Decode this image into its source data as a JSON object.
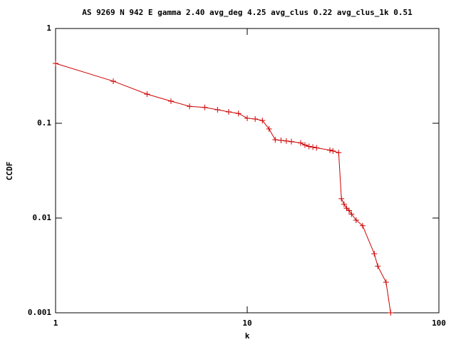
{
  "chart_data": {
    "type": "line",
    "title": "AS 9269 N 942 E gamma 2.40 avg_deg 4.25 avg_clus 0.22 avg_clus_1k 0.51",
    "xlabel": "k",
    "ylabel": "CCDF",
    "log_x": true,
    "log_y": true,
    "xlim": [
      1,
      100
    ],
    "xticks": [
      1,
      10,
      100
    ],
    "ylim": [
      0.001,
      1
    ],
    "yticks": [
      0.001,
      0.01,
      0.1,
      1
    ],
    "series": [
      {
        "color": "#cc0000",
        "x": [
          1,
          2,
          3,
          4,
          5,
          6,
          7,
          8,
          9,
          10,
          11,
          12,
          13,
          14,
          15,
          16,
          17,
          19,
          20,
          21,
          22,
          23,
          27,
          28,
          30,
          31,
          32,
          33,
          34,
          35,
          37,
          40,
          46,
          48,
          53,
          56
        ],
        "values": [
          0.428,
          0.278,
          0.203,
          0.171,
          0.151,
          0.147,
          0.139,
          0.132,
          0.127,
          0.113,
          0.111,
          0.107,
          0.087,
          0.067,
          0.066,
          0.065,
          0.064,
          0.062,
          0.059,
          0.057,
          0.056,
          0.055,
          0.052,
          0.051,
          0.049,
          0.016,
          0.014,
          0.0127,
          0.012,
          0.011,
          0.0095,
          0.0083,
          0.0042,
          0.0031,
          0.0021,
          0.001
        ]
      }
    ]
  }
}
